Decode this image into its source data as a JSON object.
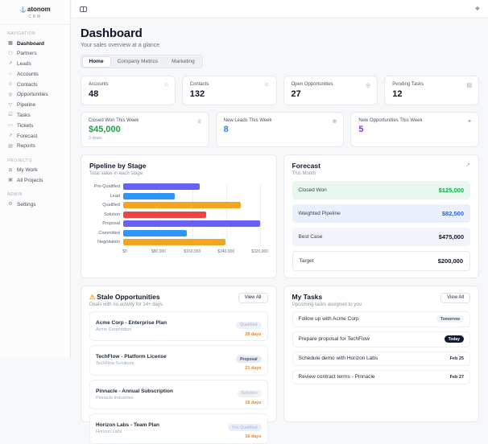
{
  "icon_glyphs": {
    "anchor-icon": "⚓",
    "dashboard-icon": "▦",
    "partners-icon": "⬡",
    "leads-icon": "⇗",
    "accounts-icon": "⌂",
    "contacts-icon": "☺",
    "opportunities-icon": "◎",
    "pipeline-icon": "▽",
    "tasks-icon": "☑",
    "tickets-icon": "▭",
    "forecast-icon": "↗",
    "reports-icon": "▤",
    "my-work-icon": "⊞",
    "all-projects-icon": "▣",
    "settings-icon": "⚙",
    "building-icon": "⌂",
    "users-icon": "☺",
    "target-icon": "◎",
    "clipboard-icon": "▤",
    "trophy-icon": "♕",
    "user-plus-icon": "⊕",
    "sparkles-icon": "✦",
    "trending-up-icon": "↗",
    "warning-icon": "⚠",
    "header-action-icon": "❖"
  },
  "sidebar": {
    "logo": {
      "text": "atonom",
      "subtext": "CRM"
    },
    "sections": [
      {
        "label": "Navigation",
        "items": [
          {
            "label": "Dashboard",
            "icon": "dashboard-icon",
            "active": true
          },
          {
            "label": "Partners",
            "icon": "partners-icon",
            "active": false
          },
          {
            "label": "Leads",
            "icon": "leads-icon",
            "active": false
          },
          {
            "label": "Accounts",
            "icon": "accounts-icon",
            "active": false
          },
          {
            "label": "Contacts",
            "icon": "contacts-icon",
            "active": false
          },
          {
            "label": "Opportunities",
            "icon": "opportunities-icon",
            "active": false
          },
          {
            "label": "Pipeline",
            "icon": "pipeline-icon",
            "active": false
          },
          {
            "label": "Tasks",
            "icon": "tasks-icon",
            "active": false
          },
          {
            "label": "Tickets",
            "icon": "tickets-icon",
            "active": false
          },
          {
            "label": "Forecast",
            "icon": "forecast-icon",
            "active": false
          },
          {
            "label": "Reports",
            "icon": "reports-icon",
            "active": false
          }
        ]
      },
      {
        "label": "Projects",
        "items": [
          {
            "label": "My Work",
            "icon": "my-work-icon",
            "active": false
          },
          {
            "label": "All Projects",
            "icon": "all-projects-icon",
            "active": false
          }
        ]
      },
      {
        "label": "Admin",
        "items": [
          {
            "label": "Settings",
            "icon": "settings-icon",
            "active": false
          }
        ]
      }
    ]
  },
  "page": {
    "title": "Dashboard",
    "subtitle": "Your sales overview at a glance"
  },
  "tabs": [
    {
      "label": "Home",
      "active": true
    },
    {
      "label": "Company Metrics",
      "active": false
    },
    {
      "label": "Marketing",
      "active": false
    }
  ],
  "stat_cards": [
    {
      "label": "Accounts",
      "value": "48",
      "icon": "building-icon"
    },
    {
      "label": "Contacts",
      "value": "132",
      "icon": "users-icon"
    },
    {
      "label": "Open Opportunities",
      "value": "27",
      "icon": "target-icon"
    },
    {
      "label": "Pending Tasks",
      "value": "12",
      "icon": "clipboard-icon"
    }
  ],
  "week_cards": [
    {
      "label": "Closed Won This Week",
      "value": "$45,000",
      "sub": "3 deals",
      "value_color": "#1ea04a",
      "icon": "trophy-icon"
    },
    {
      "label": "New Leads This Week",
      "value": "8",
      "sub": "",
      "value_color": "#2f80ed",
      "icon": "user-plus-icon"
    },
    {
      "label": "New Opportunities This Week",
      "value": "5",
      "sub": "",
      "value_color": "#9333ea",
      "icon": "sparkles-icon"
    }
  ],
  "chart_data": {
    "type": "bar",
    "orientation": "horizontal",
    "title": "Pipeline by Stage",
    "subtitle": "Total value in each stage",
    "categories": [
      "Pre-Qualified",
      "Lead",
      "Qualified",
      "Solution",
      "Proposal",
      "Committed",
      "Negotiation"
    ],
    "values": [
      180000,
      120000,
      275000,
      195000,
      320000,
      150000,
      240000
    ],
    "bar_colors": [
      "#6661f2",
      "#2e96f5",
      "#f5a41f",
      "#ee4343",
      "#6661f2",
      "#2e96f5",
      "#f5a41f"
    ],
    "xlim": [
      0,
      335000
    ],
    "ticks": {
      "values": [
        0,
        80000,
        160000,
        240000,
        320000
      ],
      "labels": [
        "$0",
        "$80,000",
        "$160,000",
        "$240,000",
        "$320,000"
      ]
    },
    "grid": true,
    "legend": "none"
  },
  "forecast": {
    "title": "Forecast",
    "subtitle": "This Month",
    "rows": [
      {
        "label": "Closed Won",
        "value": "$125,000",
        "value_color": "#16a34a",
        "bg": "#e9f8ef",
        "border": false
      },
      {
        "label": "Weighted Pipeline",
        "value": "$82,500",
        "value_color": "#2563eb",
        "bg": "#eaf1fd",
        "border": false
      },
      {
        "label": "Best Case",
        "value": "$475,000",
        "value_color": "#0f172a",
        "bg": "#f1f4f8",
        "border": false
      },
      {
        "label": "Target",
        "value": "$200,000",
        "value_color": "#0f172a",
        "bg": "#ffffff",
        "border": true
      }
    ]
  },
  "stale": {
    "title": "Stale Opportunities",
    "subtitle": "Deals with no activity for 14+ days",
    "view_all": "View All",
    "items": [
      {
        "name": "Acme Corp - Enterprise Plan",
        "company": "Acme Corporation",
        "stage": "Qualified",
        "stage_bg": "#eef1f6",
        "stage_color": "#b9c3d3",
        "age": "28 days"
      },
      {
        "name": "TechFlow - Platform License",
        "company": "TechFlow Solutions",
        "stage": "Proposal",
        "stage_bg": "#e6eaf0",
        "stage_color": "#42506b",
        "age": "21 days"
      },
      {
        "name": "Pinnacle - Annual Subscription",
        "company": "Pinnacle Industries",
        "stage": "Solution",
        "stage_bg": "#eef1f6",
        "stage_color": "#bcc6d6",
        "age": "18 days"
      },
      {
        "name": "Horizon Labs - Team Plan",
        "company": "Horizon Labs",
        "stage": "Pre-Qualified",
        "stage_bg": "#e9effa",
        "stage_color": "#b6c8ea",
        "age": "16 days"
      }
    ]
  },
  "tasks": {
    "title": "My Tasks",
    "subtitle": "Upcoming tasks assigned to you",
    "view_all": "View All",
    "items": [
      {
        "name": "Follow up with Acme Corp",
        "due": "Tomorrow",
        "pill": true,
        "bg": "#f1f4f8",
        "color": "#3f4a5c"
      },
      {
        "name": "Prepare proposal for TechFlow",
        "due": "Today",
        "pill": true,
        "bg": "#111b30",
        "color": "#ffffff"
      },
      {
        "name": "Schedule demo with Horizon Labs",
        "due": "Feb 25",
        "pill": false,
        "bg": "",
        "color": "#1f2937"
      },
      {
        "name": "Review contract terms - Pinnacle",
        "due": "Feb 27",
        "pill": false,
        "bg": "",
        "color": "#1f2937"
      }
    ]
  }
}
